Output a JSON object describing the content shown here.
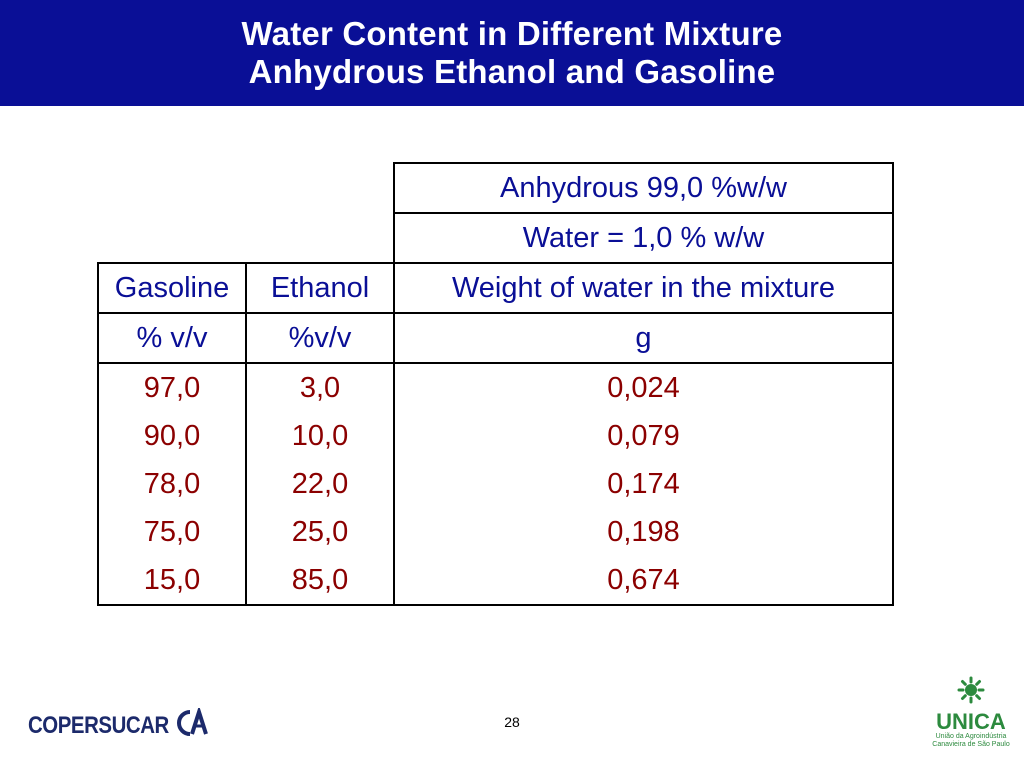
{
  "title": {
    "line1": "Water Content in Different Mixture",
    "line2": "Anhydrous Ethanol and Gasoline"
  },
  "table": {
    "anhydrous_header": "Anhydrous 99,0 %w/w",
    "water_header": "Water = 1,0 % w/w",
    "columns": [
      "Gasoline",
      "Ethanol",
      "Weight of water in the mixture"
    ],
    "units": [
      "% v/v",
      "%v/v",
      "g"
    ],
    "rows": [
      [
        "97,0",
        "3,0",
        "0,024"
      ],
      [
        "90,0",
        "10,0",
        "0,079"
      ],
      [
        "78,0",
        "22,0",
        "0,174"
      ],
      [
        "75,0",
        "25,0",
        "0,198"
      ],
      [
        "15,0",
        "85,0",
        "0,674"
      ]
    ]
  },
  "footer": {
    "page_number": "28",
    "left_logo_text": "COPERSUCAR",
    "right_logo_text": "UNICA",
    "right_logo_sub1": "União da Agroindústria",
    "right_logo_sub2": "Canavieira de São Paulo"
  },
  "colors": {
    "header_bg": "#0a0f96",
    "header_text": "#0a0f96",
    "value_text": "#8b0000",
    "logo_green": "#2c8a3e",
    "logo_blue": "#1c2a6b"
  }
}
